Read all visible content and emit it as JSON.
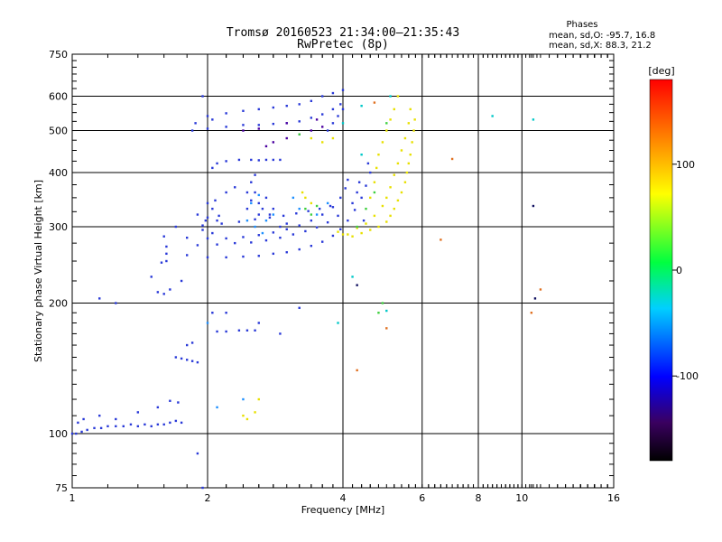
{
  "chart_data": {
    "type": "scatter",
    "title": "Tromsø 20160523 21:34:00–21:35:43",
    "subtitle": "RwPretec (8p)",
    "stats_title": "Phases",
    "stats": [
      "mean, sd,O: -95.7, 16.8",
      "mean, sd,X:  88.3, 21.2"
    ],
    "xlabel": "Frequency [MHz]",
    "ylabel": "Stationary phase Virtual Height [km]",
    "x_scale": "log",
    "y_scale": "log",
    "xlim": [
      1,
      16
    ],
    "ylim": [
      75,
      750
    ],
    "x_major_ticks": [
      1,
      2,
      4,
      6,
      8,
      10,
      16
    ],
    "y_major_ticks": [
      75,
      100,
      200,
      300,
      400,
      500,
      600,
      750
    ],
    "x_tick_labels": [
      "1",
      "2",
      "4",
      "6",
      "8",
      "10",
      "16"
    ],
    "y_tick_labels": [
      "75",
      "100",
      "200",
      "300",
      "400",
      "500",
      "600",
      "750"
    ],
    "grid": true,
    "colorbar": {
      "label": "[deg]",
      "range": [
        -180,
        180
      ],
      "ticks": [
        100,
        0,
        -100
      ],
      "tick_labels": [
        "100",
        "0",
        "-100"
      ]
    },
    "series": [
      {
        "mode": "O",
        "phase": -100,
        "color": "#2a3ad8",
        "points": [
          [
            1.0,
            100
          ],
          [
            1.02,
            100
          ],
          [
            1.05,
            101
          ],
          [
            1.08,
            102
          ],
          [
            1.12,
            103
          ],
          [
            1.16,
            103
          ],
          [
            1.2,
            104
          ],
          [
            1.25,
            104
          ],
          [
            1.3,
            104
          ],
          [
            1.35,
            105
          ],
          [
            1.4,
            104
          ],
          [
            1.45,
            105
          ],
          [
            1.5,
            104
          ],
          [
            1.55,
            105
          ],
          [
            1.6,
            105
          ],
          [
            1.65,
            106
          ],
          [
            1.7,
            107
          ],
          [
            1.75,
            106
          ],
          [
            1.03,
            106
          ],
          [
            1.06,
            108
          ],
          [
            1.15,
            110
          ],
          [
            1.25,
            108
          ],
          [
            1.4,
            112
          ],
          [
            1.55,
            115
          ],
          [
            1.65,
            119
          ],
          [
            1.72,
            118
          ],
          [
            1.55,
            212
          ],
          [
            1.6,
            210
          ],
          [
            1.65,
            215
          ],
          [
            1.58,
            248
          ],
          [
            1.62,
            250
          ],
          [
            1.7,
            150
          ],
          [
            1.75,
            149
          ],
          [
            1.8,
            148
          ],
          [
            1.85,
            147
          ],
          [
            1.9,
            146
          ],
          [
            1.8,
            160
          ],
          [
            1.85,
            162
          ],
          [
            2.1,
            172
          ],
          [
            2.2,
            172
          ],
          [
            2.35,
            173
          ],
          [
            2.45,
            173
          ],
          [
            2.55,
            173
          ],
          [
            1.62,
            260
          ],
          [
            1.8,
            258
          ],
          [
            2.0,
            255
          ],
          [
            2.2,
            255
          ],
          [
            2.4,
            256
          ],
          [
            2.6,
            257
          ],
          [
            2.8,
            260
          ],
          [
            3.0,
            262
          ],
          [
            3.2,
            266
          ],
          [
            3.4,
            271
          ],
          [
            3.6,
            277
          ],
          [
            3.8,
            286
          ],
          [
            3.95,
            296
          ],
          [
            4.1,
            310
          ],
          [
            4.25,
            328
          ],
          [
            4.4,
            350
          ],
          [
            4.5,
            373
          ],
          [
            1.6,
            285
          ],
          [
            1.8,
            283
          ],
          [
            2.0,
            282
          ],
          [
            2.2,
            282
          ],
          [
            2.4,
            284
          ],
          [
            2.6,
            287
          ],
          [
            2.8,
            291
          ],
          [
            3.0,
            296
          ],
          [
            3.2,
            302
          ],
          [
            3.4,
            310
          ],
          [
            3.6,
            320
          ],
          [
            3.8,
            333
          ],
          [
            3.95,
            350
          ],
          [
            4.05,
            368
          ],
          [
            4.1,
            385
          ],
          [
            1.62,
            270
          ],
          [
            1.9,
            272
          ],
          [
            2.1,
            273
          ],
          [
            2.3,
            275
          ],
          [
            2.5,
            276
          ],
          [
            2.7,
            279
          ],
          [
            2.9,
            283
          ],
          [
            3.1,
            288
          ],
          [
            3.3,
            293
          ],
          [
            3.5,
            299
          ],
          [
            3.7,
            307
          ],
          [
            3.9,
            318
          ],
          [
            1.7,
            300
          ],
          [
            1.95,
            302
          ],
          [
            2.15,
            305
          ],
          [
            2.35,
            308
          ],
          [
            2.55,
            312
          ],
          [
            2.75,
            315
          ],
          [
            2.95,
            318
          ],
          [
            3.15,
            322
          ],
          [
            3.35,
            326
          ],
          [
            3.55,
            330
          ],
          [
            3.75,
            335
          ],
          [
            1.9,
            320
          ],
          [
            2.0,
            315
          ],
          [
            2.05,
            330
          ],
          [
            2.1,
            310
          ],
          [
            1.95,
            295
          ],
          [
            2.05,
            290
          ],
          [
            2.0,
            340
          ],
          [
            2.08,
            345
          ],
          [
            1.98,
            310
          ],
          [
            2.12,
            318
          ],
          [
            2.45,
            330
          ],
          [
            2.5,
            345
          ],
          [
            2.55,
            360
          ],
          [
            2.6,
            340
          ],
          [
            2.65,
            330
          ],
          [
            2.7,
            350
          ],
          [
            2.75,
            320
          ],
          [
            2.5,
            380
          ],
          [
            2.55,
            395
          ],
          [
            2.45,
            360
          ],
          [
            2.2,
            360
          ],
          [
            2.3,
            370
          ],
          [
            2.6,
            320
          ],
          [
            2.8,
            330
          ],
          [
            2.9,
            300
          ],
          [
            3.0,
            305
          ],
          [
            2.2,
            425
          ],
          [
            2.35,
            428
          ],
          [
            2.5,
            428
          ],
          [
            2.6,
            427
          ],
          [
            2.7,
            428
          ],
          [
            2.8,
            428
          ],
          [
            2.9,
            428
          ],
          [
            2.05,
            410
          ],
          [
            2.1,
            420
          ],
          [
            1.85,
            500
          ],
          [
            2.0,
            505
          ],
          [
            2.2,
            510
          ],
          [
            2.4,
            515
          ],
          [
            2.6,
            515
          ],
          [
            2.8,
            518
          ],
          [
            3.0,
            520
          ],
          [
            3.2,
            525
          ],
          [
            3.4,
            535
          ],
          [
            3.6,
            545
          ],
          [
            3.8,
            560
          ],
          [
            3.95,
            575
          ],
          [
            2.0,
            540
          ],
          [
            2.2,
            548
          ],
          [
            2.4,
            555
          ],
          [
            2.6,
            560
          ],
          [
            2.8,
            565
          ],
          [
            3.0,
            570
          ],
          [
            3.2,
            575
          ],
          [
            3.4,
            585
          ],
          [
            3.6,
            600
          ],
          [
            3.8,
            610
          ],
          [
            4.0,
            620
          ],
          [
            3.8,
            520
          ],
          [
            3.9,
            540
          ],
          [
            4.0,
            560
          ],
          [
            3.7,
            500
          ],
          [
            1.95,
            600
          ],
          [
            2.05,
            530
          ],
          [
            1.88,
            520
          ],
          [
            4.6,
            400
          ],
          [
            4.55,
            420
          ],
          [
            4.35,
            380
          ],
          [
            4.3,
            360
          ],
          [
            4.2,
            340
          ],
          [
            4.45,
            310
          ],
          [
            1.95,
            75
          ],
          [
            1.9,
            90
          ],
          [
            1.15,
            205
          ],
          [
            1.25,
            200
          ],
          [
            1.5,
            230
          ],
          [
            1.75,
            225
          ],
          [
            2.05,
            190
          ],
          [
            2.2,
            190
          ],
          [
            2.9,
            170
          ],
          [
            2.6,
            180
          ],
          [
            3.2,
            195
          ]
        ]
      },
      {
        "mode": "O-var",
        "phase": -60,
        "color": "#1e90ff",
        "points": [
          [
            2.45,
            310
          ],
          [
            2.55,
            300
          ],
          [
            2.65,
            290
          ],
          [
            2.7,
            310
          ],
          [
            2.8,
            320
          ],
          [
            2.5,
            340
          ],
          [
            2.6,
            355
          ],
          [
            3.1,
            350
          ],
          [
            3.2,
            330
          ],
          [
            3.5,
            320
          ],
          [
            3.7,
            340
          ],
          [
            2.0,
            180
          ],
          [
            2.4,
            120
          ],
          [
            2.1,
            115
          ]
        ]
      },
      {
        "mode": "O-purple",
        "phase": -130,
        "color": "#4b00a0",
        "points": [
          [
            2.7,
            460
          ],
          [
            2.8,
            470
          ],
          [
            3.0,
            480
          ],
          [
            3.2,
            490
          ],
          [
            3.4,
            500
          ],
          [
            3.0,
            520
          ],
          [
            3.5,
            530
          ],
          [
            3.6,
            510
          ],
          [
            2.4,
            500
          ],
          [
            2.6,
            505
          ]
        ]
      },
      {
        "mode": "X",
        "phase": 100,
        "color": "#e8e000",
        "points": [
          [
            4.2,
            285
          ],
          [
            4.4,
            290
          ],
          [
            4.6,
            295
          ],
          [
            4.8,
            300
          ],
          [
            5.0,
            308
          ],
          [
            5.1,
            318
          ],
          [
            5.2,
            330
          ],
          [
            5.3,
            345
          ],
          [
            5.4,
            360
          ],
          [
            5.5,
            380
          ],
          [
            5.55,
            400
          ],
          [
            5.6,
            420
          ],
          [
            5.65,
            440
          ],
          [
            5.7,
            470
          ],
          [
            5.75,
            500
          ],
          [
            5.78,
            530
          ],
          [
            3.9,
            292
          ],
          [
            4.0,
            288
          ],
          [
            4.1,
            288
          ],
          [
            4.3,
            298
          ],
          [
            4.5,
            305
          ],
          [
            4.7,
            318
          ],
          [
            4.9,
            335
          ],
          [
            5.0,
            350
          ],
          [
            5.1,
            370
          ],
          [
            5.2,
            395
          ],
          [
            5.3,
            420
          ],
          [
            5.4,
            450
          ],
          [
            5.5,
            480
          ],
          [
            5.6,
            520
          ],
          [
            5.65,
            560
          ],
          [
            4.6,
            350
          ],
          [
            4.7,
            380
          ],
          [
            4.75,
            410
          ],
          [
            4.8,
            440
          ],
          [
            4.9,
            470
          ],
          [
            5.0,
            500
          ],
          [
            5.1,
            530
          ],
          [
            5.2,
            560
          ],
          [
            5.3,
            600
          ],
          [
            3.4,
            480
          ],
          [
            3.6,
            470
          ],
          [
            3.8,
            480
          ],
          [
            3.3,
            350
          ],
          [
            3.4,
            340
          ],
          [
            3.25,
            360
          ],
          [
            2.45,
            108
          ],
          [
            2.4,
            110
          ],
          [
            2.55,
            112
          ],
          [
            2.6,
            120
          ]
        ]
      },
      {
        "mode": "X-green",
        "phase": 40,
        "color": "#40d040",
        "points": [
          [
            3.3,
            330
          ],
          [
            3.4,
            320
          ],
          [
            3.5,
            335
          ],
          [
            4.3,
            300
          ],
          [
            4.5,
            330
          ],
          [
            4.7,
            360
          ],
          [
            5.0,
            520
          ],
          [
            4.8,
            190
          ],
          [
            4.9,
            200
          ],
          [
            3.2,
            490
          ]
        ]
      },
      {
        "mode": "X-orange",
        "phase": 140,
        "color": "#e07020",
        "points": [
          [
            6.6,
            280
          ],
          [
            7.0,
            430
          ],
          [
            4.3,
            140
          ],
          [
            5.0,
            175
          ],
          [
            4.7,
            580
          ],
          [
            10.5,
            190
          ],
          [
            11.0,
            215
          ]
        ]
      },
      {
        "mode": "isolated",
        "phase": -10,
        "color": "#00c8c8",
        "points": [
          [
            8.6,
            540
          ],
          [
            10.6,
            530
          ],
          [
            4.4,
            440
          ],
          [
            4.0,
            520
          ],
          [
            4.4,
            570
          ],
          [
            5.1,
            600
          ],
          [
            4.2,
            230
          ],
          [
            3.9,
            180
          ],
          [
            5.0,
            192
          ]
        ]
      },
      {
        "mode": "isolated-dark",
        "phase": -150,
        "color": "#101060",
        "points": [
          [
            10.6,
            335
          ],
          [
            4.3,
            220
          ],
          [
            10.7,
            205
          ]
        ]
      }
    ]
  }
}
